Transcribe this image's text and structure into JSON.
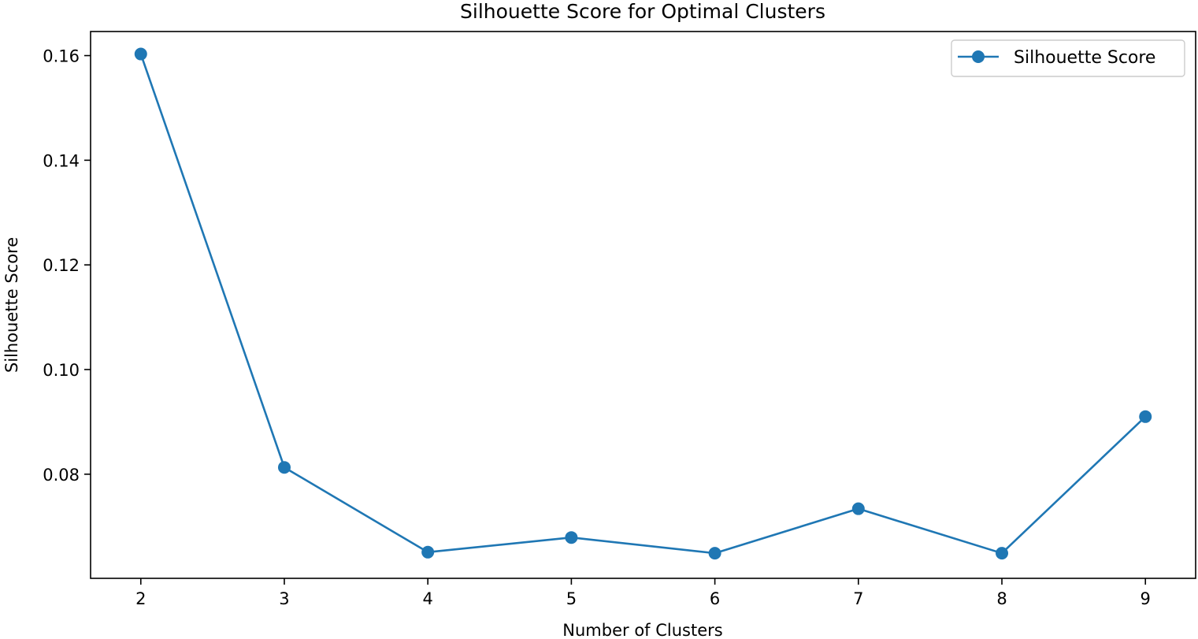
{
  "chart_data": {
    "type": "line",
    "title": "Silhouette Score for Optimal Clusters",
    "xlabel": "Number of Clusters",
    "ylabel": "Silhouette Score",
    "x": [
      2,
      3,
      4,
      5,
      6,
      7,
      8,
      9
    ],
    "xticks": [
      "2",
      "3",
      "4",
      "5",
      "6",
      "7",
      "8",
      "9"
    ],
    "yticks": [
      0.08,
      0.1,
      0.12,
      0.14,
      0.16
    ],
    "ytick_labels": [
      "0.08",
      "0.10",
      "0.12",
      "0.14",
      "0.16"
    ],
    "xlim": [
      1.65,
      9.35
    ],
    "ylim": [
      0.0601,
      0.1646
    ],
    "series": [
      {
        "name": "Silhouette Score",
        "color": "#1f77b4",
        "marker": "circle",
        "values": [
          0.1603,
          0.0813,
          0.0651,
          0.0679,
          0.0649,
          0.0734,
          0.0649,
          0.091
        ]
      }
    ],
    "grid": false,
    "legend_position": "top-right"
  }
}
